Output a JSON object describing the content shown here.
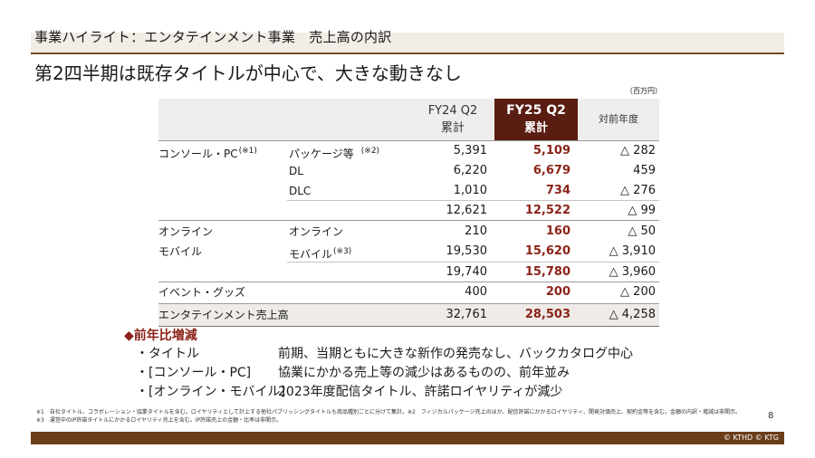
{
  "header": {
    "section_title": "事業ハイライト：エンタテインメント事業　売上高の内訳",
    "headline": "第2四半期は既存タイトルが中心で、大きな動きなし"
  },
  "table": {
    "unit": "（百万円）",
    "columns": {
      "fy24_line1": "FY24 Q2",
      "fy24_line2": "累計",
      "fy25_line1": "FY25 Q2",
      "fy25_line2": "累計",
      "yoy": "対前年度"
    },
    "groups": {
      "console": "コンソール・PC",
      "console_note": "(※1)",
      "online_mobile_1": "オンライン",
      "online_mobile_2": "モバイル",
      "events": "イベント・グッズ",
      "total": "エンタテインメント売上高"
    },
    "rows": [
      {
        "sub": "パッケージ等",
        "note": "(※2)",
        "fy24": "5,391",
        "fy25": "5,109",
        "yoy": "△ 282"
      },
      {
        "sub": "DL",
        "note": "",
        "fy24": "6,220",
        "fy25": "6,679",
        "yoy": "459"
      },
      {
        "sub": "DLC",
        "note": "",
        "fy24": "1,010",
        "fy25": "734",
        "yoy": "△ 276"
      },
      {
        "sub": "",
        "note": "",
        "fy24": "12,621",
        "fy25": "12,522",
        "yoy": "△ 99"
      },
      {
        "sub": "オンライン",
        "note": "",
        "fy24": "210",
        "fy25": "160",
        "yoy": "△ 50"
      },
      {
        "sub": "モバイル",
        "note": "(※3)",
        "fy24": "19,530",
        "fy25": "15,620",
        "yoy": "△ 3,910"
      },
      {
        "sub": "",
        "note": "",
        "fy24": "19,740",
        "fy25": "15,780",
        "yoy": "△ 3,960"
      },
      {
        "sub": "",
        "note": "",
        "fy24": "400",
        "fy25": "200",
        "yoy": "△ 200"
      },
      {
        "sub": "",
        "note": "",
        "fy24": "32,761",
        "fy25": "28,503",
        "yoy": "△ 4,258"
      }
    ]
  },
  "bullets": {
    "title": "◆前年比増減",
    "items": [
      {
        "key": "・タイトル",
        "value": "前期、当期ともに大きな新作の発売なし、バックカタログ中心"
      },
      {
        "key": "・[コンソール・PC]",
        "value": "協業にかかる売上等の減少はあるものの、前年並み"
      },
      {
        "key": "・[オンライン・モバイル]",
        "value": "2023年度配信タイトル、許諾ロイヤリティが減少"
      }
    ]
  },
  "footnotes": {
    "line1": "※1　自社タイトル、コラボレーション・協業タイトルを含む。ロイヤリティとして計上する他社パブリッシングタイトルも商品種別ごとに分けて集計。※2　フィジカルパッケージ売上のほか、配信許諾にかかるロイヤリティ、開発対価売上、契約金等を含む。金額の内訳・増減は非開示。",
    "line2": "※3　運営中のIP許諾タイトルにかかるロイヤリティ売上を含む。IP許諾売上の金額・比率は非開示。"
  },
  "page_number": "8",
  "copyright": "© KTHD © KTG",
  "colors": {
    "brand_brown": "#6b3e1a",
    "accent_red": "#8b2318",
    "fy25_header_bg": "#5a1d12"
  }
}
